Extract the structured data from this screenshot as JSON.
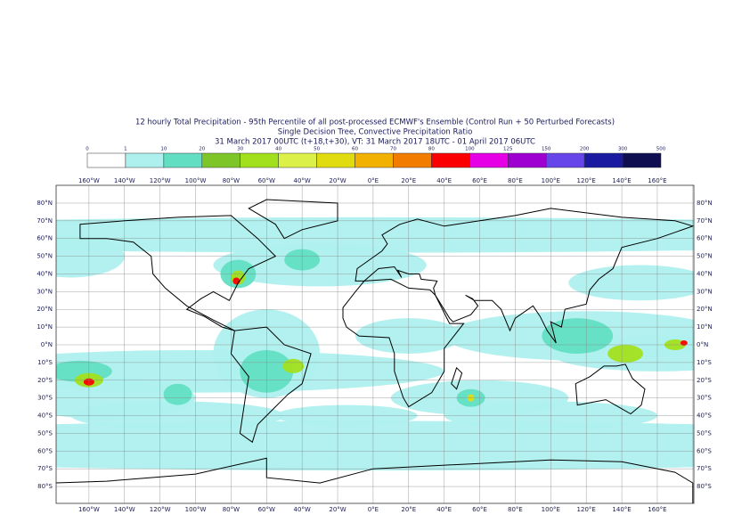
{
  "header": {
    "title": "12 hourly Total Precipitation - 95th Percentile of all post-processed ECMWF's Ensemble (Control Run + 50 Perturbed Forecasts)",
    "subtitle": "Single Decision Tree, Convective Precipitation Ratio",
    "validity": "31 March 2017 00UTC (t+18,t+30), VT: 31 March 2017 18UTC - 01 April 2017 06UTC"
  },
  "legend": {
    "labels": [
      "0",
      "1",
      "10",
      "20",
      "30",
      "40",
      "50",
      "60",
      "70",
      "80",
      "100",
      "125",
      "150",
      "200",
      "300",
      "500"
    ],
    "colors": [
      "#ffffff",
      "#aef0ee",
      "#62dfc2",
      "#7ec628",
      "#a2e01e",
      "#dcf04a",
      "#e0dc10",
      "#f2b000",
      "#f27c00",
      "#fa0000",
      "#e600e6",
      "#9e00d2",
      "#6646e8",
      "#1a1aa0",
      "#0e0e50"
    ]
  },
  "map": {
    "lon_labels": [
      "160°W",
      "140°W",
      "120°W",
      "100°W",
      "80°W",
      "60°W",
      "40°W",
      "20°W",
      "0°E",
      "20°E",
      "40°E",
      "60°E",
      "80°E",
      "100°E",
      "120°E",
      "140°E",
      "160°E"
    ],
    "lat_labels": [
      "80°N",
      "70°N",
      "60°N",
      "50°N",
      "40°N",
      "30°N",
      "20°N",
      "10°N",
      "0°N",
      "10°S",
      "20°S",
      "30°S",
      "40°S",
      "50°S",
      "60°S",
      "70°S",
      "80°S"
    ]
  }
}
